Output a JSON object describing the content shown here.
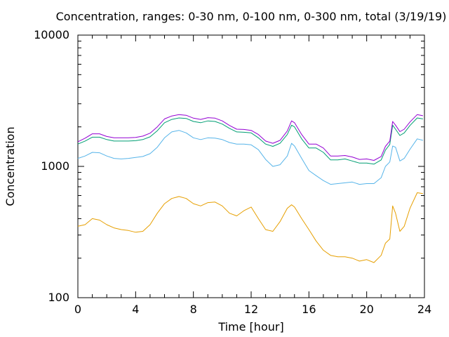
{
  "chart_data": {
    "type": "line",
    "title": "Concentration, ranges: 0-30 nm, 0-100 nm, 0-300 nm, total (3/19/19)",
    "xlabel": "Time [hour]",
    "ylabel": "Concentration",
    "xlim": [
      0,
      24
    ],
    "ylim": [
      100,
      10000
    ],
    "yscale": "log",
    "x_ticks": [
      "0",
      "4",
      "8",
      "12",
      "16",
      "20",
      "24"
    ],
    "y_ticks": [
      "100",
      "1000",
      "10000"
    ],
    "grid": false,
    "legend": "none",
    "x": [
      0,
      0.5,
      1,
      1.5,
      2,
      2.5,
      3,
      3.5,
      4,
      4.5,
      5,
      5.5,
      6,
      6.5,
      7,
      7.5,
      8,
      8.5,
      9,
      9.5,
      10,
      10.5,
      11,
      11.5,
      12,
      12.5,
      13,
      13.5,
      14,
      14.5,
      14.8,
      15,
      15.5,
      16,
      16.5,
      17,
      17.5,
      18,
      18.5,
      19,
      19.5,
      20,
      20.5,
      21,
      21.3,
      21.6,
      21.8,
      22,
      22.3,
      22.6,
      23,
      23.5,
      23.9
    ],
    "series": [
      {
        "color": "#E69F00",
        "values": [
          350,
          360,
          400,
          390,
          360,
          340,
          330,
          325,
          315,
          320,
          360,
          440,
          520,
          570,
          590,
          570,
          520,
          500,
          530,
          535,
          500,
          440,
          420,
          460,
          490,
          400,
          330,
          320,
          380,
          480,
          510,
          490,
          400,
          330,
          270,
          230,
          210,
          205,
          205,
          200,
          190,
          195,
          185,
          210,
          260,
          280,
          500,
          440,
          320,
          350,
          480,
          630,
          620
        ]
      },
      {
        "color": "#56B4E9",
        "values": [
          1150,
          1200,
          1280,
          1270,
          1200,
          1150,
          1140,
          1150,
          1170,
          1190,
          1250,
          1400,
          1650,
          1830,
          1880,
          1800,
          1650,
          1600,
          1650,
          1640,
          1600,
          1520,
          1480,
          1480,
          1460,
          1340,
          1130,
          1000,
          1030,
          1200,
          1500,
          1430,
          1150,
          930,
          850,
          780,
          730,
          740,
          750,
          760,
          730,
          740,
          740,
          820,
          1000,
          1080,
          1430,
          1400,
          1100,
          1150,
          1350,
          1620,
          1580
        ]
      },
      {
        "color": "#009E73",
        "values": [
          1480,
          1560,
          1670,
          1670,
          1600,
          1560,
          1560,
          1560,
          1570,
          1600,
          1680,
          1870,
          2150,
          2280,
          2340,
          2320,
          2200,
          2150,
          2220,
          2200,
          2100,
          1950,
          1830,
          1820,
          1800,
          1650,
          1480,
          1420,
          1500,
          1750,
          2060,
          2000,
          1620,
          1380,
          1380,
          1280,
          1120,
          1120,
          1140,
          1100,
          1060,
          1060,
          1040,
          1120,
          1330,
          1470,
          2060,
          1920,
          1720,
          1800,
          2050,
          2340,
          2300
        ]
      },
      {
        "color": "#9400D3",
        "values": [
          1540,
          1640,
          1770,
          1770,
          1690,
          1650,
          1650,
          1650,
          1660,
          1700,
          1790,
          2000,
          2300,
          2420,
          2480,
          2450,
          2330,
          2280,
          2350,
          2330,
          2220,
          2050,
          1920,
          1910,
          1880,
          1750,
          1560,
          1500,
          1580,
          1860,
          2220,
          2150,
          1750,
          1480,
          1480,
          1380,
          1200,
          1200,
          1210,
          1180,
          1130,
          1140,
          1110,
          1190,
          1420,
          1560,
          2200,
          2060,
          1840,
          1920,
          2180,
          2480,
          2430
        ]
      }
    ]
  }
}
